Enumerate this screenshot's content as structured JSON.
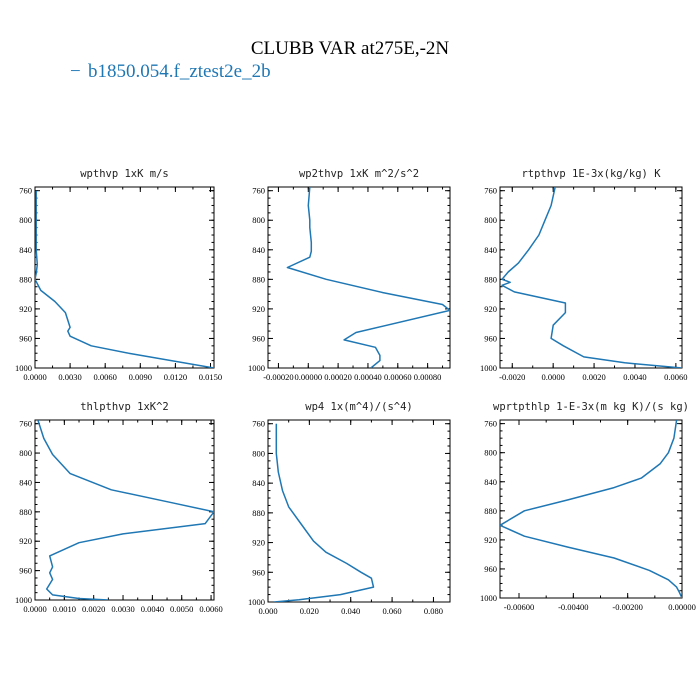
{
  "figure": {
    "title": "CLUBB VAR at275E,-2N",
    "legend_line": "−",
    "legend_label": "b1850.054.f_ztest2e_2b",
    "series_color": "#1f77b4"
  },
  "chart_data": [
    {
      "type": "line",
      "title": "wpthvp  1xK m/s",
      "series": [
        {
          "name": "b1850.054.f_ztest2e_2b"
        }
      ],
      "xlim": [
        0,
        0.0153
      ],
      "xticks": [
        0,
        0.003,
        0.006,
        0.009,
        0.012,
        0.015
      ],
      "xtick_labels": [
        "0.0000",
        "0.0030",
        "0.0060",
        "0.0090",
        "0.0120",
        "0.0150"
      ],
      "ylim": [
        1000,
        755
      ],
      "yticks": [
        760,
        800,
        840,
        880,
        920,
        960,
        1000
      ],
      "ytick_labels": [
        "760",
        "800",
        "840",
        "880",
        "920",
        "960",
        "1000"
      ],
      "x": [
        0.0001,
        0.0001,
        0.0001,
        0.0002,
        0.0001,
        0,
        0.0005,
        0.0017,
        0.0026,
        0.003,
        0.0028,
        0.003,
        0.0048,
        0.008,
        0.0153
      ],
      "y": [
        760,
        800,
        840,
        860,
        872,
        880,
        895,
        910,
        925,
        945,
        950,
        957,
        970,
        980,
        1000
      ]
    },
    {
      "type": "line",
      "title": "wp2thvp  1xK m^2/s^2",
      "series": [
        {
          "name": "b1850.054.f_ztest2e_2b"
        }
      ],
      "xlim": [
        -0.00027,
        0.00095
      ],
      "xticks": [
        -0.0002,
        0,
        0.0002,
        0.0004,
        0.0006,
        0.0008
      ],
      "xtick_labels": [
        "-0.00020",
        "0.00000",
        "0.00020",
        "0.00040",
        "0.00060",
        "0.00080"
      ],
      "ylim": [
        1000,
        755
      ],
      "yticks": [
        760,
        800,
        840,
        880,
        920,
        960,
        1000
      ],
      "ytick_labels": [
        "760",
        "800",
        "840",
        "880",
        "920",
        "960",
        "1000"
      ],
      "x": [
        1e-05,
        0,
        1e-05,
        1e-05,
        2e-05,
        2e-05,
        1e-05,
        -0.00014,
        0.00012,
        0.0005,
        0.0009,
        0.00095,
        0.00032,
        0.00024,
        0.00045,
        0.00048,
        0.00048,
        0.00042
      ],
      "y": [
        755,
        780,
        800,
        810,
        830,
        842,
        850,
        864,
        880,
        898,
        914,
        922,
        952,
        962,
        972,
        983,
        990,
        1000
      ]
    },
    {
      "type": "line",
      "title": "rtpthvp  1E-3x(kg/kg) K",
      "series": [
        {
          "name": "b1850.054.f_ztest2e_2b"
        }
      ],
      "xlim": [
        -0.0026,
        0.0063
      ],
      "xticks": [
        -0.002,
        0,
        0.002,
        0.004,
        0.006
      ],
      "xtick_labels": [
        "-0.0020",
        "0.0000",
        "0.0020",
        "0.0040",
        "0.0060"
      ],
      "ylim": [
        1000,
        755
      ],
      "yticks": [
        760,
        800,
        840,
        880,
        920,
        960,
        1000
      ],
      "ytick_labels": [
        "760",
        "800",
        "840",
        "880",
        "920",
        "960",
        "1000"
      ],
      "x": [
        0.0001,
        -0.0001,
        -0.0004,
        -0.0007,
        -0.0012,
        -0.0017,
        -0.0022,
        -0.0025,
        -0.0021,
        -0.0025,
        -0.0019,
        0.0006,
        0.0006,
        0,
        -0.0001,
        0.0005,
        0.0015,
        0.0035,
        0.0063
      ],
      "y": [
        755,
        780,
        800,
        820,
        840,
        858,
        870,
        880,
        884,
        888,
        897,
        912,
        925,
        942,
        960,
        970,
        985,
        993,
        1000
      ]
    },
    {
      "type": "line",
      "title": "thlpthvp  1xK^2",
      "series": [
        {
          "name": "b1850.054.f_ztest2e_2b"
        }
      ],
      "xlim": [
        0,
        0.0061
      ],
      "xticks": [
        0,
        0.001,
        0.002,
        0.003,
        0.004,
        0.005,
        0.006
      ],
      "xtick_labels": [
        "0.0000",
        "0.0010",
        "0.0020",
        "0.0030",
        "0.0040",
        "0.0050",
        "0.0060"
      ],
      "ylim": [
        1000,
        755
      ],
      "yticks": [
        760,
        800,
        840,
        880,
        920,
        960,
        1000
      ],
      "ytick_labels": [
        "760",
        "800",
        "840",
        "880",
        "920",
        "960",
        "1000"
      ],
      "x": [
        0.0001,
        0.0003,
        0.0006,
        0.0012,
        0.0026,
        0.0046,
        0.0061,
        0.0058,
        0.003,
        0.0015,
        0.0005,
        0.0006,
        0.0005,
        0.0006,
        0.0004,
        0.0006,
        0.0015,
        0.0025
      ],
      "y": [
        755,
        780,
        802,
        828,
        850,
        867,
        880,
        896,
        910,
        922,
        940,
        955,
        963,
        972,
        985,
        993,
        998,
        1000
      ]
    },
    {
      "type": "line",
      "title": "wp4  1x(m^4)/(s^4)",
      "series": [
        {
          "name": "b1850.054.f_ztest2e_2b"
        }
      ],
      "xlim": [
        0,
        0.088
      ],
      "xticks": [
        0,
        0.02,
        0.04,
        0.06,
        0.08
      ],
      "xtick_labels": [
        "0.000",
        "0.020",
        "0.040",
        "0.060",
        "0.080"
      ],
      "ylim": [
        1000,
        755
      ],
      "yticks": [
        760,
        800,
        840,
        880,
        920,
        960,
        1000
      ],
      "ytick_labels": [
        "760",
        "800",
        "840",
        "880",
        "920",
        "960",
        "1000"
      ],
      "x": [
        0.004,
        0.004,
        0.005,
        0.007,
        0.01,
        0.016,
        0.022,
        0.028,
        0.038,
        0.045,
        0.05,
        0.051,
        0.035,
        0.015,
        0.003
      ],
      "y": [
        760,
        800,
        825,
        850,
        872,
        895,
        918,
        933,
        948,
        960,
        968,
        980,
        990,
        997,
        1000
      ]
    },
    {
      "type": "line",
      "title": "wprtpthlp  1-E-3x(m kg K)/(s kg)",
      "series": [
        {
          "name": "b1850.054.f_ztest2e_2b"
        }
      ],
      "xlim": [
        -0.0067,
        0
      ],
      "xticks": [
        -0.006,
        -0.004,
        -0.002,
        0
      ],
      "xtick_labels": [
        "-0.00600",
        "-0.00400",
        "-0.00200",
        "0.00000"
      ],
      "ylim": [
        1000,
        755
      ],
      "yticks": [
        760,
        800,
        840,
        880,
        920,
        960,
        1000
      ],
      "ytick_labels": [
        "760",
        "800",
        "840",
        "880",
        "920",
        "960",
        "1000"
      ],
      "x": [
        -0.0002,
        -0.0003,
        -0.0005,
        -0.0008,
        -0.0015,
        -0.0025,
        -0.0042,
        -0.0058,
        -0.0067,
        -0.0058,
        -0.0042,
        -0.0025,
        -0.0012,
        -0.0005,
        -0.0002,
        -0.0001,
        0
      ],
      "y": [
        755,
        780,
        800,
        815,
        835,
        848,
        865,
        880,
        900,
        915,
        930,
        945,
        962,
        975,
        985,
        992,
        1000
      ]
    }
  ]
}
